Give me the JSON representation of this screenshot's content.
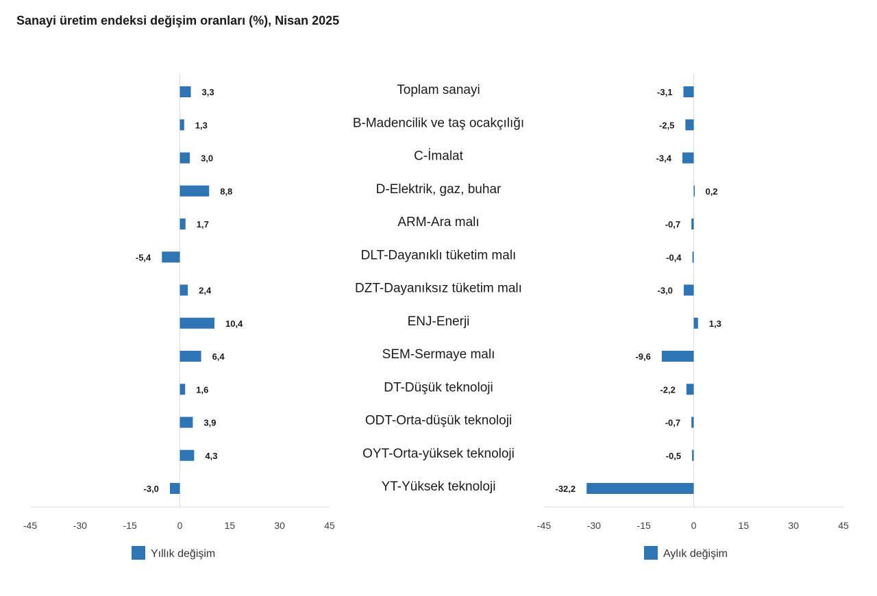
{
  "title": "Sanayi üretim endeksi değişim oranları (%), Nisan 2025",
  "colors": {
    "bar": "#2e75b6",
    "axis": "#d9d9d9",
    "text": "#1a1a1a"
  },
  "chart_data": {
    "type": "bar",
    "orientation": "horizontal",
    "title": "Sanayi üretim endeksi değişim oranları (%), Nisan 2025",
    "categories": [
      "Toplam sanayi",
      "B-Madencilik ve taş ocakçılığı",
      "C-İmalat",
      "D-Elektrik, gaz, buhar",
      "ARM-Ara malı",
      "DLT-Dayanıklı tüketim malı",
      "DZT-Dayanıksız tüketim malı",
      "ENJ-Enerji",
      "SEM-Sermaye malı",
      "DT-Düşük teknoloji",
      "ODT-Orta-düşük teknoloji",
      "OYT-Orta-yüksek teknoloji",
      "YT-Yüksek teknoloji"
    ],
    "series": [
      {
        "name": "Yıllık değişim",
        "values": [
          3.3,
          1.3,
          3.0,
          8.8,
          1.7,
          -5.4,
          2.4,
          10.4,
          6.4,
          1.6,
          3.9,
          4.3,
          -3.0
        ],
        "labels": [
          "3,3",
          "1,3",
          "3,0",
          "8,8",
          "1,7",
          "-5,4",
          "2,4",
          "10,4",
          "6,4",
          "1,6",
          "3,9",
          "4,3",
          "-3,0"
        ]
      },
      {
        "name": "Aylık değişim",
        "values": [
          -3.1,
          -2.5,
          -3.4,
          0.2,
          -0.7,
          -0.4,
          -3.0,
          1.3,
          -9.6,
          -2.2,
          -0.7,
          -0.5,
          -32.2
        ],
        "labels": [
          "-3,1",
          "-2,5",
          "-3,4",
          "0,2",
          "-0,7",
          "-0,4",
          "-3,0",
          "1,3",
          "-9,6",
          "-2,2",
          "-0,7",
          "-0,5",
          "-32,2"
        ]
      }
    ],
    "xlim": [
      -45,
      45
    ],
    "xticks": [
      -45,
      -30,
      -15,
      0,
      15,
      30,
      45
    ],
    "xtick_labels": [
      "-45",
      "-30",
      "-15",
      "0",
      "15",
      "30",
      "45"
    ],
    "grid": false,
    "legend_placement": "bottom-left"
  }
}
